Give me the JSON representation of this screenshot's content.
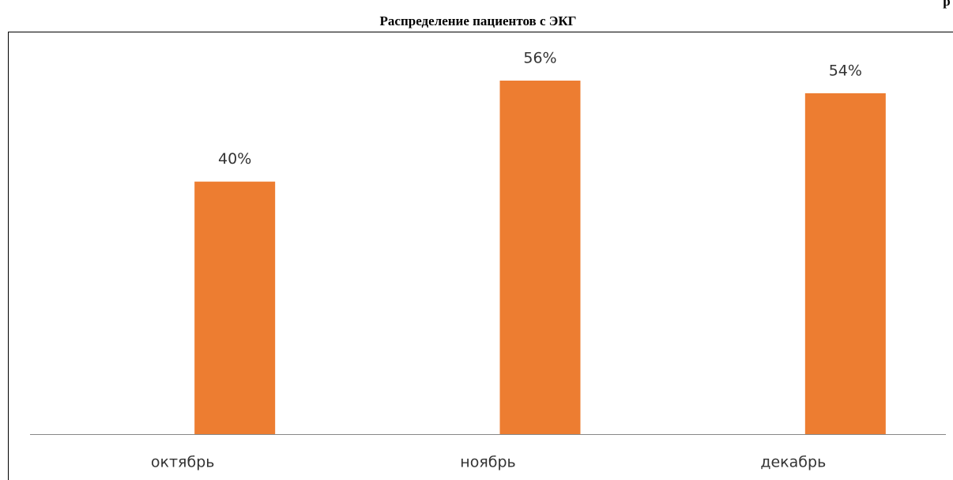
{
  "chart_data": {
    "type": "bar",
    "title": "Распределение пациентов с ЭКГ",
    "corner_text": "р",
    "categories": [
      "октябрь",
      "ноябрь",
      "декабрь"
    ],
    "values": [
      40,
      56,
      54
    ],
    "value_labels": [
      "40%",
      "56%",
      "54%"
    ],
    "color": "#ed7d31",
    "ylim": [
      0,
      60
    ]
  }
}
